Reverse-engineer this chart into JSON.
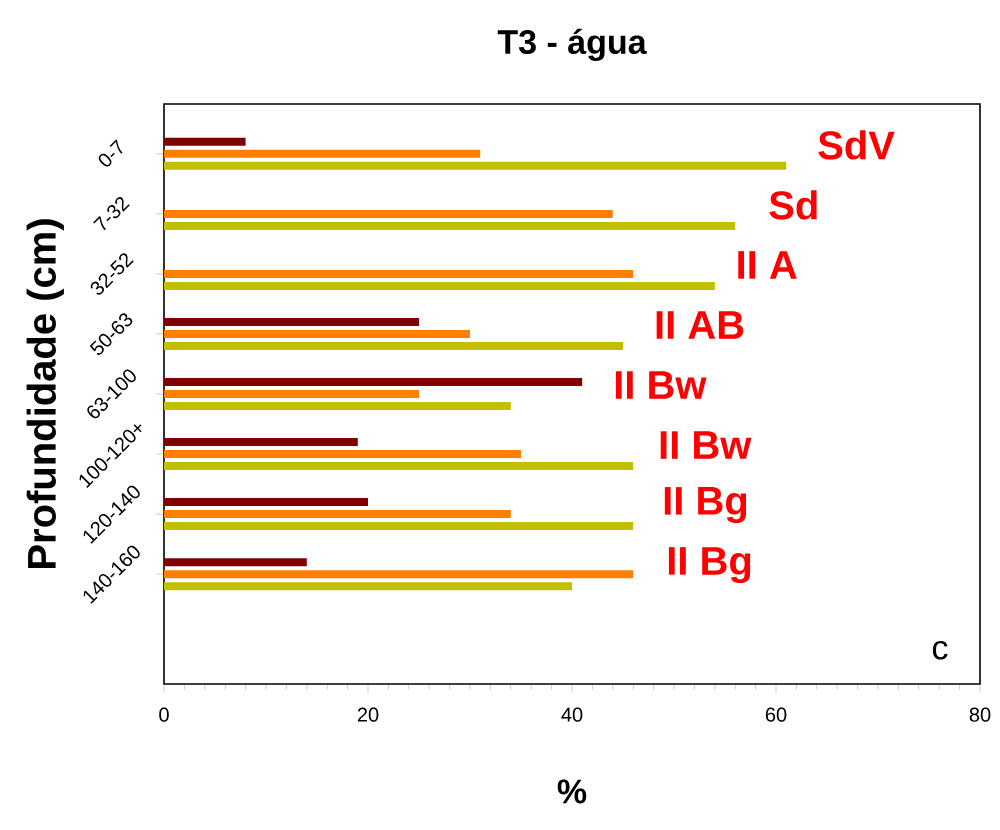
{
  "chart_data": {
    "type": "bar",
    "orientation": "horizontal",
    "title": "T3 - água",
    "xlabel": "%",
    "ylabel": "Profundidade (cm)",
    "categories": [
      "0-7",
      "7-32",
      "32-52",
      "50-63",
      "63-100",
      "100-120+",
      "120-140",
      "140-160"
    ],
    "series": [
      {
        "color": "#800000",
        "values": [
          8,
          null,
          null,
          25,
          41,
          19,
          20,
          14
        ]
      },
      {
        "color": "#ff8000",
        "values": [
          31,
          44,
          46,
          30,
          25,
          35,
          34,
          46
        ]
      },
      {
        "color": "#c0c000",
        "values": [
          61,
          56,
          54,
          45,
          34,
          46,
          46,
          40
        ]
      }
    ],
    "xlim": [
      0,
      80
    ],
    "xticks": [
      0,
      20,
      40,
      60,
      80
    ],
    "annotations": [
      "SdV",
      "Sd",
      "II A",
      "II AB",
      "II Bw",
      "II Bw",
      "II Bg",
      "II Bg",
      "c"
    ]
  }
}
